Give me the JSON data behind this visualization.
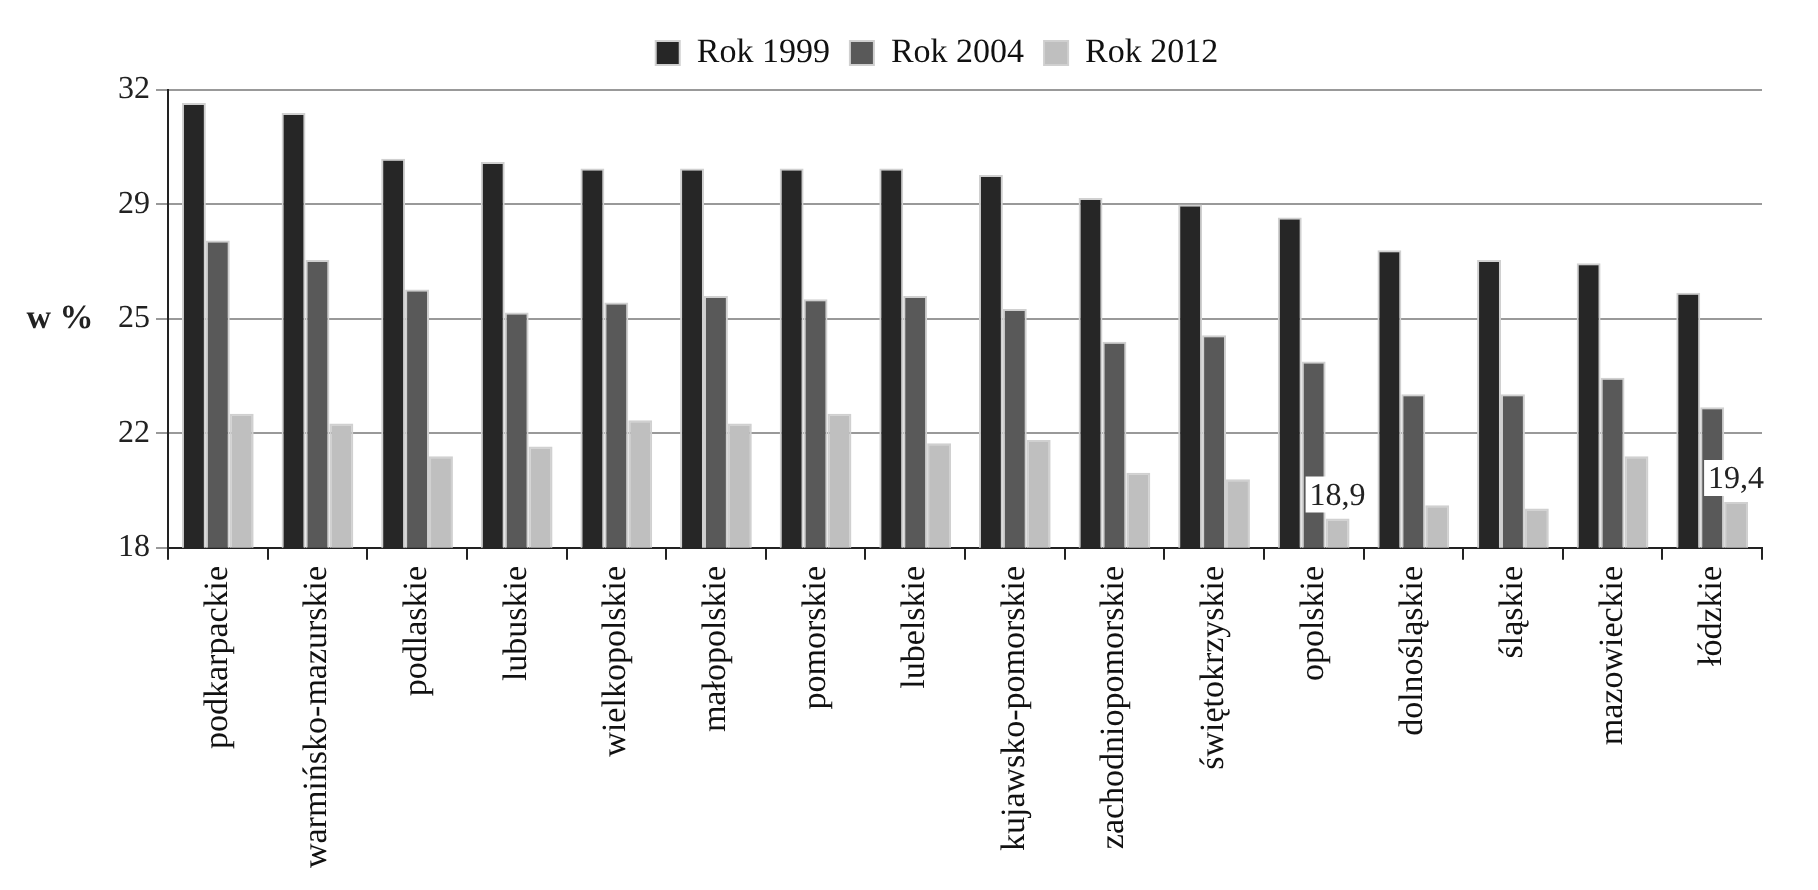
{
  "chart_data": {
    "type": "bar",
    "ylabel": "w %",
    "categories": [
      "podkarpackie",
      "warmińsko-mazurskie",
      "podlaskie",
      "lubuskie",
      "wielkopolskie",
      "małopolskie",
      "pomorskie",
      "lubelskie",
      "kujawsko-pomorskie",
      "zachodniopomorskie",
      "świętokrzyskie",
      "opolskie",
      "dolnośląskie",
      "śląskie",
      "mazowieckie",
      "łódzkie"
    ],
    "series": [
      {
        "name": "Rok 1999",
        "color": "#262626",
        "values": [
          31.6,
          31.3,
          29.9,
          29.8,
          29.6,
          29.6,
          29.6,
          29.6,
          29.4,
          28.7,
          28.5,
          28.1,
          27.1,
          26.8,
          26.7,
          25.8
        ]
      },
      {
        "name": "Rok 2004",
        "color": "#595959",
        "values": [
          27.4,
          26.8,
          25.9,
          25.2,
          25.5,
          25.7,
          25.6,
          25.7,
          25.3,
          24.3,
          24.5,
          23.7,
          22.7,
          22.7,
          23.2,
          22.3
        ]
      },
      {
        "name": "Rok 2012",
        "color": "#bfbfbf",
        "values": [
          22.1,
          21.8,
          20.8,
          21.1,
          21.9,
          21.8,
          22.1,
          21.2,
          21.3,
          20.3,
          20.1,
          18.9,
          19.3,
          19.2,
          20.8,
          19.4
        ],
        "value_labels": [
          null,
          null,
          null,
          null,
          null,
          null,
          null,
          null,
          null,
          null,
          null,
          "18,9",
          null,
          null,
          null,
          "19,4"
        ]
      }
    ],
    "ylim": [
      18,
      32
    ],
    "yticks": [
      18,
      {
        "value": 21.5,
        "label": "22"
      },
      25,
      {
        "value": 28.5,
        "label": "29"
      },
      32
    ],
    "grid": "y",
    "legend": "top"
  }
}
